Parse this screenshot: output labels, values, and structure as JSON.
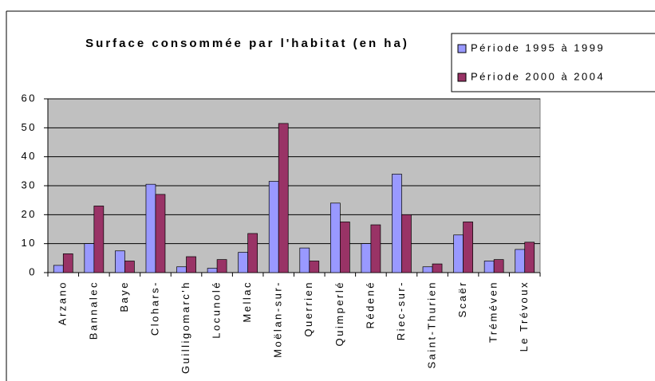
{
  "chart_data": {
    "type": "bar",
    "title": "Surface consommée par l'habitat (en ha)",
    "categories": [
      "Arzano",
      "Bannalec",
      "Baye",
      "Clohars-",
      "Guilligomarc'h",
      "Locunolé",
      "Mellac",
      "Moëlan-sur-",
      "Querrien",
      "Quimperlé",
      "Rédené",
      "Riec-sur-",
      "Saint-Thurien",
      "Scaër",
      "Tréméven",
      "Le Trévoux"
    ],
    "series": [
      {
        "name": "Période 1995 à 1999",
        "color": "#9999ff",
        "values": [
          2.5,
          10,
          7.5,
          30.5,
          2,
          1.5,
          7,
          31.5,
          8.5,
          24,
          10,
          34,
          2,
          13,
          4,
          8
        ]
      },
      {
        "name": "Période 2000 à 2004",
        "color": "#993366",
        "values": [
          6.5,
          23,
          4,
          27,
          5.5,
          4.5,
          13.5,
          51.5,
          4,
          17.5,
          16.5,
          20,
          3,
          17.5,
          4.5,
          10.5
        ]
      }
    ],
    "ylim": [
      0,
      60
    ],
    "yticks": [
      0,
      10,
      20,
      30,
      40,
      50,
      60
    ],
    "grid": true,
    "legend": "top-right"
  }
}
